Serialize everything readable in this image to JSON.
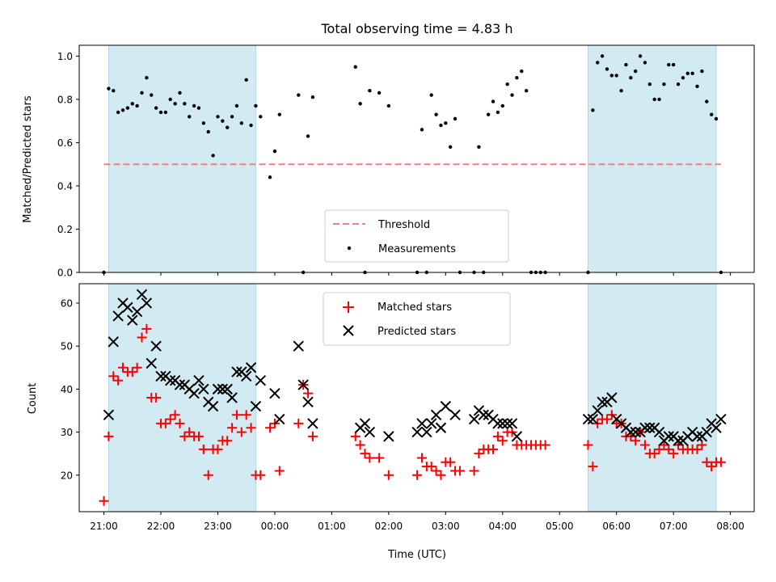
{
  "chart_data": [
    {
      "type": "scatter",
      "title": "Total observing time = 4.83 h",
      "ylabel": "Matched/Predicted stars",
      "xlabel": "",
      "xlim": [
        "20:34",
        "08:25"
      ],
      "ylim": [
        0,
        1.05
      ],
      "yticks": [
        "0.0",
        "0.2",
        "0.4",
        "0.6",
        "0.8",
        "1.0"
      ],
      "threshold": 0.5,
      "shaded_intervals": [
        [
          "21:05",
          "23:40"
        ],
        [
          "05:30",
          "07:45"
        ]
      ],
      "colors": {
        "threshold": "#f08080",
        "measurements": "#000000",
        "shade": "#add8e6"
      },
      "legend": {
        "position": "bottom-center",
        "entries": [
          {
            "label": "Threshold",
            "style": "dashed-line"
          },
          {
            "label": "Measurements",
            "style": "dot"
          }
        ]
      },
      "series": [
        {
          "name": "Measurements",
          "x": [
            "21:00",
            "21:05",
            "21:10",
            "21:15",
            "21:20",
            "21:25",
            "21:30",
            "21:35",
            "21:40",
            "21:45",
            "21:50",
            "21:55",
            "22:00",
            "22:05",
            "22:10",
            "22:15",
            "22:20",
            "22:25",
            "22:30",
            "22:35",
            "22:40",
            "22:45",
            "22:50",
            "22:55",
            "23:00",
            "23:05",
            "23:10",
            "23:15",
            "23:20",
            "23:25",
            "23:30",
            "23:35",
            "23:40",
            "23:45",
            "23:55",
            "00:00",
            "00:05",
            "00:25",
            "00:30",
            "00:35",
            "00:40",
            "01:25",
            "01:30",
            "01:35",
            "01:40",
            "01:50",
            "02:00",
            "02:30",
            "02:35",
            "02:40",
            "02:45",
            "02:50",
            "02:55",
            "03:00",
            "03:05",
            "03:10",
            "03:15",
            "03:30",
            "03:35",
            "03:40",
            "03:45",
            "03:50",
            "03:55",
            "04:00",
            "04:05",
            "04:10",
            "04:15",
            "04:20",
            "04:25",
            "04:30",
            "04:35",
            "04:40",
            "04:45",
            "05:30",
            "05:35",
            "05:40",
            "05:45",
            "05:50",
            "05:55",
            "06:00",
            "06:05",
            "06:10",
            "06:15",
            "06:20",
            "06:25",
            "06:30",
            "06:35",
            "06:40",
            "06:45",
            "06:50",
            "06:55",
            "07:00",
            "07:05",
            "07:10",
            "07:15",
            "07:20",
            "07:25",
            "07:30",
            "07:35",
            "07:40",
            "07:45",
            "07:50"
          ],
          "y": [
            0.0,
            0.85,
            0.84,
            0.74,
            0.75,
            0.76,
            0.78,
            0.77,
            0.83,
            0.9,
            0.82,
            0.76,
            0.74,
            0.74,
            0.8,
            0.78,
            0.83,
            0.78,
            0.72,
            0.77,
            0.76,
            0.69,
            0.65,
            0.54,
            0.72,
            0.7,
            0.67,
            0.72,
            0.77,
            0.69,
            0.89,
            0.68,
            0.77,
            0.72,
            0.44,
            0.56,
            0.73,
            0.82,
            0.0,
            0.63,
            0.81,
            0.95,
            0.78,
            0.0,
            0.84,
            0.83,
            0.77,
            0.0,
            0.66,
            0.0,
            0.82,
            0.73,
            0.68,
            0.69,
            0.58,
            0.71,
            0.0,
            0.0,
            0.58,
            0.0,
            0.73,
            0.79,
            0.74,
            0.77,
            0.87,
            0.82,
            0.9,
            0.93,
            0.84,
            0.0,
            0.0,
            0.0,
            0.0,
            0.0,
            0.75,
            0.97,
            1.0,
            0.94,
            0.91,
            0.91,
            0.84,
            0.96,
            0.9,
            0.93,
            1.0,
            0.97,
            0.87,
            0.8,
            0.8,
            0.87,
            0.96,
            0.96,
            0.87,
            0.9,
            0.92,
            0.92,
            0.86,
            0.93,
            0.79,
            0.73,
            0.71,
            0.0
          ]
        }
      ]
    },
    {
      "type": "scatter",
      "xlabel": "Time (UTC)",
      "ylabel": "Count",
      "xlim": [
        "20:34",
        "08:25"
      ],
      "ylim": [
        11.5,
        64.5
      ],
      "yticks": [
        "20",
        "30",
        "40",
        "50",
        "60"
      ],
      "xticks": [
        "21:00",
        "22:00",
        "23:00",
        "00:00",
        "01:00",
        "02:00",
        "03:00",
        "04:00",
        "05:00",
        "06:00",
        "07:00",
        "08:00"
      ],
      "shaded_intervals": [
        [
          "21:05",
          "23:40"
        ],
        [
          "05:30",
          "07:45"
        ]
      ],
      "colors": {
        "matched": "#ff0000",
        "predicted": "#000000",
        "shade": "#add8e6"
      },
      "legend": {
        "position": "top-center",
        "entries": [
          {
            "label": "Matched stars",
            "style": "plus"
          },
          {
            "label": "Predicted stars",
            "style": "x"
          }
        ]
      },
      "series": [
        {
          "name": "Matched stars",
          "x": [
            "21:00",
            "21:05",
            "21:10",
            "21:15",
            "21:20",
            "21:25",
            "21:30",
            "21:35",
            "21:40",
            "21:45",
            "21:50",
            "21:55",
            "22:00",
            "22:05",
            "22:10",
            "22:15",
            "22:20",
            "22:25",
            "22:30",
            "22:35",
            "22:40",
            "22:45",
            "22:50",
            "22:55",
            "23:00",
            "23:05",
            "23:10",
            "23:15",
            "23:20",
            "23:25",
            "23:30",
            "23:35",
            "23:40",
            "23:45",
            "23:55",
            "00:00",
            "00:05",
            "00:25",
            "00:30",
            "00:35",
            "00:40",
            "01:25",
            "01:30",
            "01:35",
            "01:40",
            "01:50",
            "02:00",
            "02:30",
            "02:35",
            "02:40",
            "02:45",
            "02:50",
            "02:55",
            "03:00",
            "03:05",
            "03:10",
            "03:15",
            "03:30",
            "03:35",
            "03:40",
            "03:45",
            "03:50",
            "03:55",
            "04:00",
            "04:05",
            "04:10",
            "04:15",
            "04:20",
            "04:25",
            "04:30",
            "04:35",
            "04:40",
            "04:45",
            "05:30",
            "05:35",
            "05:40",
            "05:45",
            "05:50",
            "05:55",
            "06:00",
            "06:05",
            "06:10",
            "06:15",
            "06:20",
            "06:25",
            "06:30",
            "06:35",
            "06:40",
            "06:45",
            "06:50",
            "06:55",
            "07:00",
            "07:05",
            "07:10",
            "07:15",
            "07:20",
            "07:25",
            "07:30",
            "07:35",
            "07:40",
            "07:45",
            "07:50"
          ],
          "y": [
            14,
            29,
            43,
            42,
            45,
            44,
            44,
            45,
            52,
            54,
            38,
            38,
            32,
            32,
            33,
            34,
            32,
            29,
            30,
            29,
            29,
            26,
            20,
            26,
            26,
            28,
            28,
            31,
            34,
            30,
            34,
            31,
            20,
            20,
            31,
            32,
            21,
            32,
            41,
            39,
            29,
            29,
            27,
            25,
            24,
            24,
            20,
            20,
            24,
            22,
            22,
            21,
            20,
            23,
            23,
            21,
            21,
            21,
            25,
            26,
            26,
            26,
            29,
            28,
            30,
            30,
            27,
            27,
            27,
            27,
            27,
            27,
            27,
            27,
            22,
            32,
            33,
            33,
            34,
            32,
            32,
            29,
            29,
            28,
            30,
            27,
            25,
            25,
            26,
            27,
            26,
            25,
            27,
            26,
            26,
            26,
            26,
            27,
            23,
            22,
            23,
            23
          ]
        },
        {
          "name": "Predicted stars",
          "x": [
            "21:05",
            "21:10",
            "21:15",
            "21:20",
            "21:25",
            "21:30",
            "21:35",
            "21:40",
            "21:45",
            "21:50",
            "21:55",
            "22:00",
            "22:05",
            "22:10",
            "22:15",
            "22:20",
            "22:25",
            "22:30",
            "22:35",
            "22:40",
            "22:45",
            "22:50",
            "22:55",
            "23:00",
            "23:05",
            "23:10",
            "23:15",
            "23:20",
            "23:25",
            "23:30",
            "23:35",
            "23:40",
            "23:45",
            "00:00",
            "00:05",
            "00:25",
            "00:30",
            "00:35",
            "00:40",
            "01:30",
            "01:35",
            "01:40",
            "02:00",
            "02:30",
            "02:35",
            "02:40",
            "02:45",
            "02:50",
            "02:55",
            "03:00",
            "03:10",
            "03:30",
            "03:35",
            "03:40",
            "03:45",
            "03:50",
            "03:55",
            "04:00",
            "04:05",
            "04:10",
            "04:15",
            "05:30",
            "05:35",
            "05:40",
            "05:45",
            "05:50",
            "05:55",
            "06:00",
            "06:05",
            "06:10",
            "06:15",
            "06:20",
            "06:25",
            "06:30",
            "06:35",
            "06:40",
            "06:45",
            "06:50",
            "06:55",
            "07:00",
            "07:05",
            "07:10",
            "07:15",
            "07:20",
            "07:25",
            "07:30",
            "07:35",
            "07:40",
            "07:45",
            "07:50"
          ],
          "y": [
            34,
            51,
            57,
            60,
            59,
            56,
            58,
            62,
            60,
            46,
            50,
            43,
            43,
            42,
            42,
            41,
            41,
            40,
            39,
            42,
            40,
            37,
            36,
            40,
            40,
            40,
            38,
            44,
            44,
            43,
            45,
            36,
            42,
            39,
            33,
            50,
            41,
            37,
            32,
            31,
            32,
            30,
            29,
            30,
            32,
            30,
            32,
            34,
            31,
            36,
            34,
            33,
            35,
            34,
            34,
            33,
            32,
            32,
            32,
            32,
            29,
            33,
            33,
            35,
            37,
            37,
            38,
            33,
            32,
            31,
            30,
            30,
            30,
            31,
            31,
            31,
            30,
            28,
            29,
            29,
            28,
            28,
            29,
            30,
            29,
            29,
            30,
            32,
            31,
            33
          ]
        }
      ]
    }
  ]
}
